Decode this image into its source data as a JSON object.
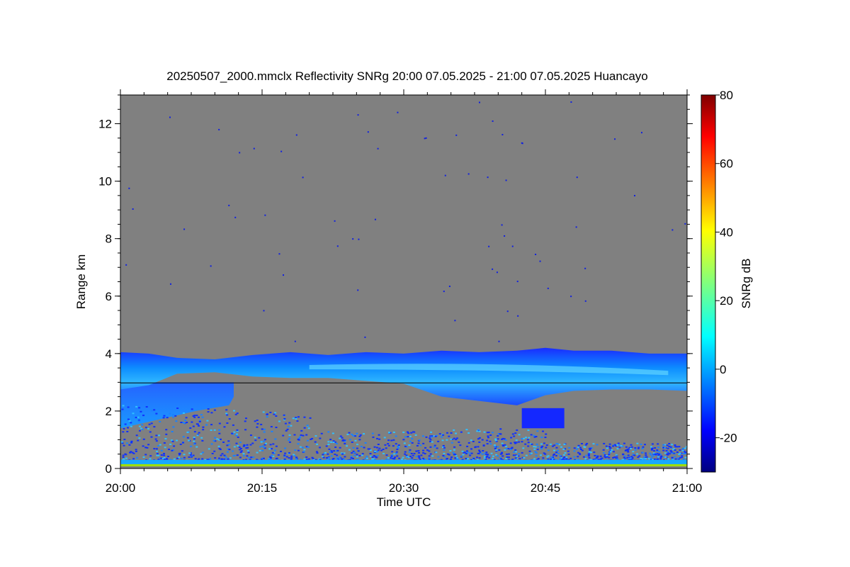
{
  "chart_data": {
    "type": "heatmap",
    "title": "20250507_2000.mmclx Reflectivity SNRg   20:00 07.05.2025 - 21:00 07.05.2025 Huancayo",
    "xlabel": "Time UTC",
    "ylabel": "Range km",
    "x_ticks": [
      "20:00",
      "20:15",
      "20:30",
      "20:45",
      "21:00"
    ],
    "x_range_minutes": [
      0,
      60
    ],
    "y_ticks": [
      0,
      2,
      4,
      6,
      8,
      10,
      12
    ],
    "ylim": [
      0,
      13
    ],
    "colorbar": {
      "label": "SNRg dB",
      "range": [
        -30,
        80
      ],
      "ticks": [
        -20,
        0,
        20,
        40,
        60,
        80
      ],
      "colormap": "jet",
      "no_signal_color": "#808080"
    },
    "features": {
      "cloud_layer": {
        "segments": [
          {
            "t": 0,
            "top": 4.05,
            "base": 2.75
          },
          {
            "t": 3,
            "top": 4.0,
            "base": 2.9
          },
          {
            "t": 6,
            "top": 3.85,
            "base": 3.3
          },
          {
            "t": 10,
            "top": 3.8,
            "base": 3.35
          },
          {
            "t": 14,
            "top": 3.95,
            "base": 3.2
          },
          {
            "t": 18,
            "top": 4.05,
            "base": 3.15
          },
          {
            "t": 22,
            "top": 3.95,
            "base": 3.15
          },
          {
            "t": 26,
            "top": 4.05,
            "base": 3.05
          },
          {
            "t": 30,
            "top": 4.0,
            "base": 2.95
          },
          {
            "t": 34,
            "top": 4.1,
            "base": 2.5
          },
          {
            "t": 38,
            "top": 4.05,
            "base": 2.35
          },
          {
            "t": 42,
            "top": 4.1,
            "base": 2.2
          },
          {
            "t": 45,
            "top": 4.2,
            "base": 2.55
          },
          {
            "t": 48,
            "top": 4.1,
            "base": 2.7
          },
          {
            "t": 52,
            "top": 4.1,
            "base": 2.75
          },
          {
            "t": 56,
            "top": 4.0,
            "base": 2.75
          },
          {
            "t": 60,
            "top": 4.0,
            "base": 2.7
          }
        ]
      },
      "horizontal_line_km": 2.98,
      "surface_band_km": 0.15
    }
  }
}
